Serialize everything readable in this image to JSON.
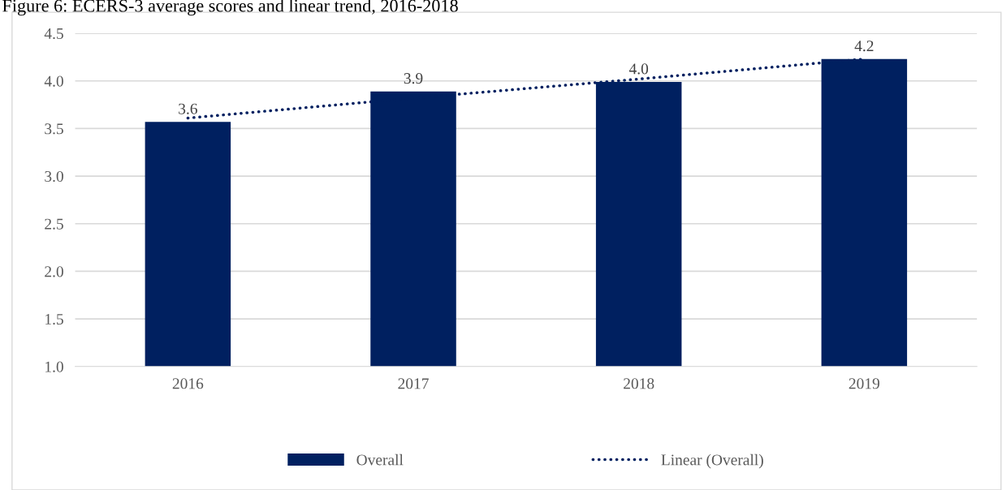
{
  "chart_data": {
    "type": "bar",
    "title": "Figure 6: ECERS-3 average scores and linear trend, 2016-2018",
    "categories": [
      "2016",
      "2017",
      "2018",
      "2019"
    ],
    "series": [
      {
        "name": "Overall",
        "color": "#002060",
        "values": [
          3.57,
          3.89,
          3.99,
          4.23
        ],
        "value_labels": [
          "3.6",
          "3.9",
          "4.0",
          "4.2"
        ]
      },
      {
        "name": "Linear (Overall)",
        "type": "line",
        "line_style": "dotted",
        "color": "#002060",
        "values": [
          3.61,
          3.82,
          4.02,
          4.23
        ]
      }
    ],
    "ylim": [
      1.0,
      4.5
    ],
    "yticks": [
      {
        "value": 1.0,
        "label": "1.0"
      },
      {
        "value": 1.5,
        "label": "1.5"
      },
      {
        "value": 2.0,
        "label": "2.0"
      },
      {
        "value": 2.5,
        "label": "2.5"
      },
      {
        "value": 3.0,
        "label": "3.0"
      },
      {
        "value": 3.5,
        "label": "3.5"
      },
      {
        "value": 4.0,
        "label": "4.0"
      },
      {
        "value": 4.5,
        "label": "4.5"
      }
    ],
    "grid": "y",
    "legend": "bottom"
  }
}
